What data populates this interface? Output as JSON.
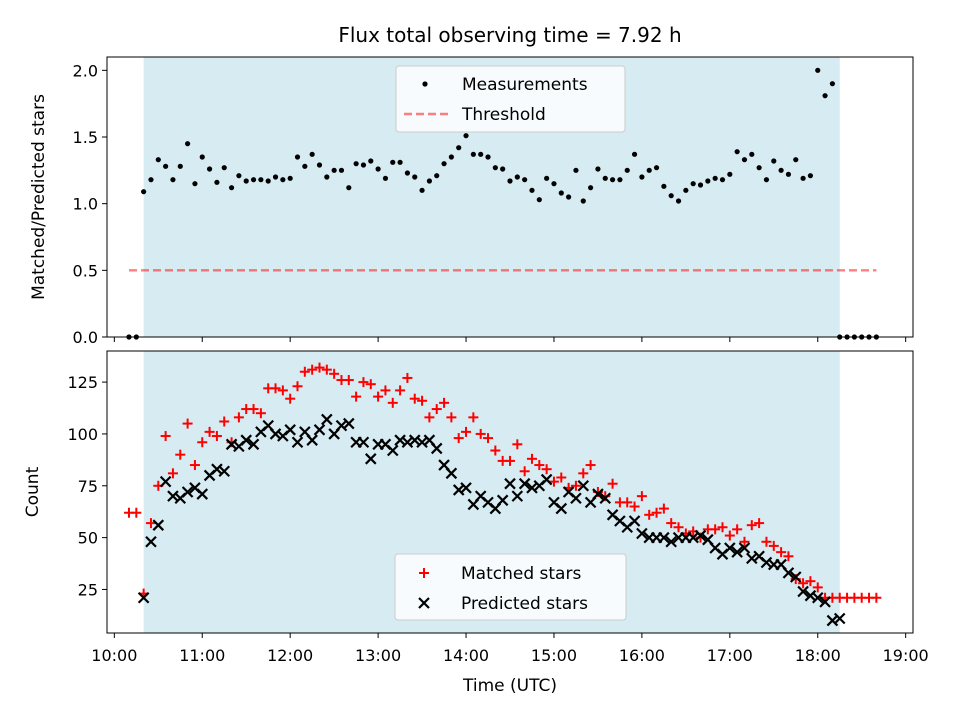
{
  "title": "Flux total observing time = 7.92 h",
  "colors": {
    "shade": "#add8e6",
    "measurements": "#000000",
    "threshold": "#ff0000",
    "matched": "#ff0000",
    "predicted": "#000000"
  },
  "chart_data": [
    {
      "type": "scatter",
      "ylabel": "Matched/Predicted stars",
      "ylim": [
        0.0,
        2.1
      ],
      "yticks": [
        "0.0",
        "0.5",
        "1.0",
        "1.5",
        "2.0"
      ],
      "grid": false,
      "legend_placement": "top-center",
      "shaded_interval": [
        "10:20",
        "18:15"
      ],
      "threshold": {
        "name": "Threshold",
        "value": 0.5,
        "x_range": [
          "10:10",
          "18:40"
        ]
      },
      "series": [
        {
          "name": "Measurements",
          "x": [
            "10:10",
            "10:15",
            "10:20",
            "10:25",
            "10:30",
            "10:35",
            "10:40",
            "10:45",
            "10:50",
            "10:55",
            "11:00",
            "11:05",
            "11:10",
            "11:15",
            "11:20",
            "11:25",
            "11:30",
            "11:35",
            "11:40",
            "11:45",
            "11:50",
            "11:55",
            "12:00",
            "12:05",
            "12:10",
            "12:15",
            "12:20",
            "12:25",
            "12:30",
            "12:35",
            "12:40",
            "12:45",
            "12:50",
            "12:55",
            "13:00",
            "13:05",
            "13:10",
            "13:15",
            "13:20",
            "13:25",
            "13:30",
            "13:35",
            "13:40",
            "13:45",
            "13:50",
            "13:55",
            "14:00",
            "14:05",
            "14:10",
            "14:15",
            "14:20",
            "14:25",
            "14:30",
            "14:35",
            "14:40",
            "14:45",
            "14:50",
            "14:55",
            "15:00",
            "15:05",
            "15:10",
            "15:15",
            "15:20",
            "15:25",
            "15:30",
            "15:35",
            "15:40",
            "15:45",
            "15:50",
            "15:55",
            "16:00",
            "16:05",
            "16:10",
            "16:15",
            "16:20",
            "16:25",
            "16:30",
            "16:35",
            "16:40",
            "16:45",
            "16:50",
            "16:55",
            "17:00",
            "17:05",
            "17:10",
            "17:15",
            "17:20",
            "17:25",
            "17:30",
            "17:35",
            "17:40",
            "17:45",
            "17:50",
            "17:55",
            "18:00",
            "18:05",
            "18:10",
            "18:15",
            "18:20",
            "18:25",
            "18:30",
            "18:35",
            "18:40"
          ],
          "y": [
            0.0,
            0.0,
            1.09,
            1.18,
            1.33,
            1.28,
            1.18,
            1.28,
            1.45,
            1.15,
            1.35,
            1.26,
            1.16,
            1.27,
            1.12,
            1.21,
            1.17,
            1.18,
            1.18,
            1.17,
            1.2,
            1.18,
            1.19,
            1.35,
            1.28,
            1.37,
            1.29,
            1.2,
            1.25,
            1.25,
            1.12,
            1.3,
            1.29,
            1.32,
            1.26,
            1.19,
            1.31,
            1.31,
            1.23,
            1.2,
            1.1,
            1.17,
            1.21,
            1.3,
            1.35,
            1.42,
            1.51,
            1.37,
            1.37,
            1.35,
            1.27,
            1.26,
            1.17,
            1.2,
            1.18,
            1.1,
            1.03,
            1.19,
            1.15,
            1.08,
            1.05,
            1.25,
            1.02,
            1.12,
            1.26,
            1.19,
            1.18,
            1.18,
            1.25,
            1.37,
            1.2,
            1.25,
            1.27,
            1.13,
            1.06,
            1.02,
            1.1,
            1.15,
            1.14,
            1.17,
            1.19,
            1.18,
            1.22,
            1.39,
            1.33,
            1.37,
            1.27,
            1.18,
            1.32,
            1.25,
            1.22,
            1.33,
            1.19,
            1.21,
            2.0,
            1.81,
            1.9,
            0.0,
            0.0,
            0.0,
            0.0,
            0.0,
            0.0
          ]
        }
      ]
    },
    {
      "type": "scatter",
      "xlabel": "Time (UTC)",
      "ylabel": "Count",
      "ylim": [
        4,
        140
      ],
      "yticks": [
        "25",
        "50",
        "75",
        "100",
        "125"
      ],
      "xlim": [
        "09:55",
        "19:05"
      ],
      "xticks": [
        "10:00",
        "11:00",
        "12:00",
        "13:00",
        "14:00",
        "15:00",
        "16:00",
        "17:00",
        "18:00",
        "19:00"
      ],
      "grid": false,
      "legend_placement": "bottom-center",
      "shaded_interval": [
        "10:20",
        "18:15"
      ],
      "series": [
        {
          "name": "Matched stars",
          "x": [
            "10:10",
            "10:15",
            "10:20",
            "10:25",
            "10:30",
            "10:35",
            "10:40",
            "10:45",
            "10:50",
            "10:55",
            "11:00",
            "11:05",
            "11:10",
            "11:15",
            "11:20",
            "11:25",
            "11:30",
            "11:35",
            "11:40",
            "11:45",
            "11:50",
            "11:55",
            "12:00",
            "12:05",
            "12:10",
            "12:15",
            "12:20",
            "12:25",
            "12:30",
            "12:35",
            "12:40",
            "12:45",
            "12:50",
            "12:55",
            "13:00",
            "13:05",
            "13:10",
            "13:15",
            "13:20",
            "13:25",
            "13:30",
            "13:35",
            "13:40",
            "13:45",
            "13:50",
            "13:55",
            "14:00",
            "14:05",
            "14:10",
            "14:15",
            "14:20",
            "14:25",
            "14:30",
            "14:35",
            "14:40",
            "14:45",
            "14:50",
            "14:55",
            "15:00",
            "15:05",
            "15:10",
            "15:15",
            "15:20",
            "15:25",
            "15:30",
            "15:35",
            "15:40",
            "15:45",
            "15:50",
            "15:55",
            "16:00",
            "16:05",
            "16:10",
            "16:15",
            "16:20",
            "16:25",
            "16:30",
            "16:35",
            "16:40",
            "16:45",
            "16:50",
            "16:55",
            "17:00",
            "17:05",
            "17:10",
            "17:15",
            "17:20",
            "17:25",
            "17:30",
            "17:35",
            "17:40",
            "17:45",
            "17:50",
            "17:55",
            "18:00",
            "18:05",
            "18:10",
            "18:15",
            "18:20",
            "18:25",
            "18:30",
            "18:35",
            "18:40"
          ],
          "y": [
            62,
            62,
            23,
            57,
            75,
            99,
            81,
            90,
            105,
            85,
            96,
            101,
            99,
            106,
            96,
            108,
            112,
            112,
            110,
            122,
            122,
            121,
            117,
            123,
            130,
            131,
            132,
            131,
            129,
            126,
            126,
            118,
            125,
            124,
            118,
            121,
            115,
            121,
            127,
            117,
            116,
            108,
            112,
            115,
            108,
            98,
            101,
            108,
            100,
            98,
            92,
            87,
            87,
            95,
            82,
            88,
            85,
            83,
            77,
            79,
            74,
            75,
            81,
            85,
            72,
            70,
            76,
            67,
            67,
            65,
            70,
            61,
            62,
            64,
            57,
            55,
            52,
            53,
            50,
            54,
            54,
            55,
            51,
            54,
            48,
            56,
            57,
            48,
            46,
            43,
            41,
            30,
            28,
            29,
            26,
            21,
            21,
            21,
            21,
            21,
            21,
            21,
            21
          ]
        },
        {
          "name": "Predicted stars",
          "x": [
            "10:20",
            "10:25",
            "10:30",
            "10:35",
            "10:40",
            "10:45",
            "10:50",
            "10:55",
            "11:00",
            "11:05",
            "11:10",
            "11:15",
            "11:20",
            "11:25",
            "11:30",
            "11:35",
            "11:40",
            "11:45",
            "11:50",
            "11:55",
            "12:00",
            "12:05",
            "12:10",
            "12:15",
            "12:20",
            "12:25",
            "12:30",
            "12:35",
            "12:40",
            "12:45",
            "12:50",
            "12:55",
            "13:00",
            "13:05",
            "13:10",
            "13:15",
            "13:20",
            "13:25",
            "13:30",
            "13:35",
            "13:40",
            "13:45",
            "13:50",
            "13:55",
            "14:00",
            "14:05",
            "14:10",
            "14:15",
            "14:20",
            "14:25",
            "14:30",
            "14:35",
            "14:40",
            "14:45",
            "14:50",
            "14:55",
            "15:00",
            "15:05",
            "15:10",
            "15:15",
            "15:20",
            "15:25",
            "15:30",
            "15:35",
            "15:40",
            "15:45",
            "15:50",
            "15:55",
            "16:00",
            "16:05",
            "16:10",
            "16:15",
            "16:20",
            "16:25",
            "16:30",
            "16:35",
            "16:40",
            "16:45",
            "16:50",
            "16:55",
            "17:00",
            "17:05",
            "17:10",
            "17:15",
            "17:20",
            "17:25",
            "17:30",
            "17:35",
            "17:40",
            "17:45",
            "17:50",
            "17:55",
            "18:00",
            "18:05",
            "18:10",
            "18:15"
          ],
          "y": [
            21,
            48,
            56,
            77,
            70,
            69,
            72,
            74,
            71,
            80,
            83,
            82,
            95,
            94,
            97,
            95,
            101,
            104,
            100,
            99,
            102,
            96,
            101,
            97,
            102,
            107,
            100,
            104,
            105,
            96,
            96,
            88,
            95,
            95,
            92,
            97,
            96,
            97,
            96,
            97,
            93,
            85,
            81,
            73,
            74,
            66,
            70,
            67,
            64,
            68,
            76,
            70,
            76,
            74,
            75,
            78,
            67,
            64,
            72,
            69,
            75,
            67,
            71,
            69,
            61,
            58,
            55,
            58,
            52,
            50,
            50,
            50,
            48,
            50,
            50,
            50,
            51,
            49,
            45,
            42,
            45,
            43,
            45,
            40,
            41,
            38,
            37,
            37,
            33,
            31,
            24,
            22,
            21,
            19,
            10,
            11
          ]
        }
      ]
    }
  ]
}
